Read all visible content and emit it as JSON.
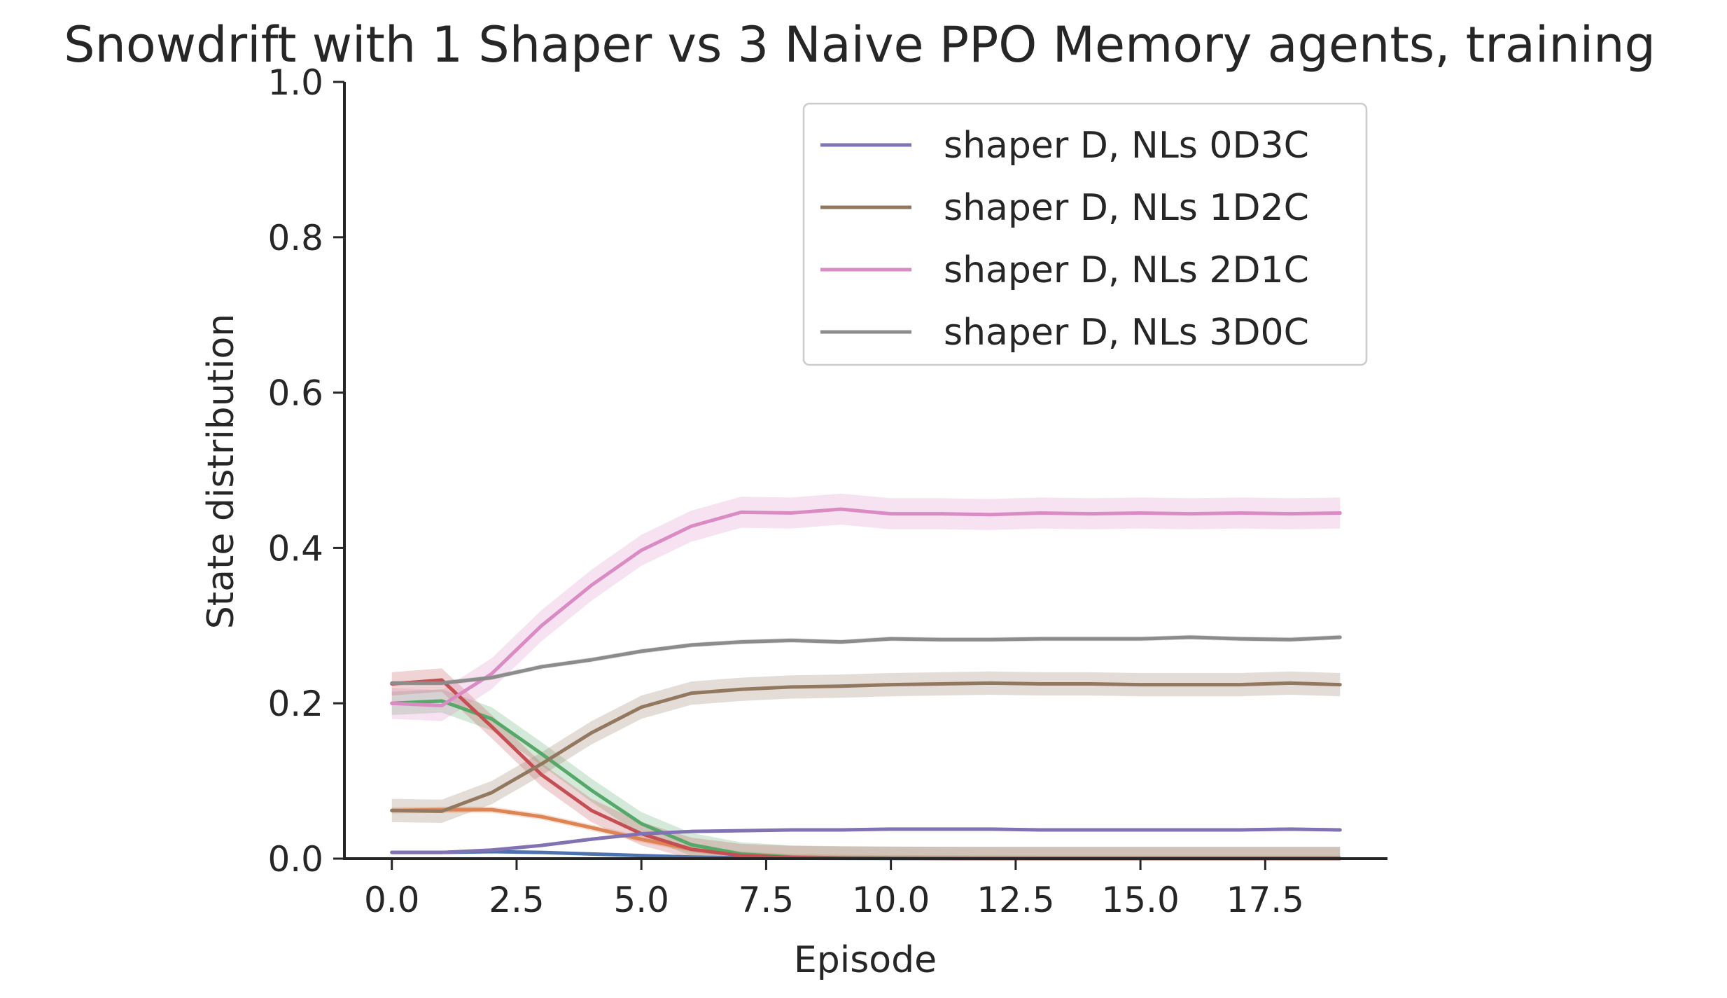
{
  "chart_data": {
    "type": "line",
    "title": "Snowdrift with 1 Shaper vs 3 Naive PPO Memory agents, training",
    "xlabel": "Episode",
    "ylabel": "State distribution",
    "xlim": [
      -0.95,
      19.95
    ],
    "ylim": [
      0,
      1
    ],
    "xticks": [
      {
        "value": 0,
        "label": "0.0"
      },
      {
        "value": 2.5,
        "label": "2.5"
      },
      {
        "value": 5,
        "label": "5.0"
      },
      {
        "value": 7.5,
        "label": "7.5"
      },
      {
        "value": 10,
        "label": "10.0"
      },
      {
        "value": 12.5,
        "label": "12.5"
      },
      {
        "value": 15,
        "label": "15.0"
      },
      {
        "value": 17.5,
        "label": "17.5"
      }
    ],
    "yticks": [
      {
        "value": 0,
        "label": "0.0"
      },
      {
        "value": 0.2,
        "label": "0.2"
      },
      {
        "value": 0.4,
        "label": "0.4"
      },
      {
        "value": 0.6,
        "label": "0.6"
      },
      {
        "value": 0.8,
        "label": "0.8"
      },
      {
        "value": 1.0,
        "label": "1.0"
      }
    ],
    "grid": false,
    "legend_position": "top-right",
    "x": [
      0,
      1,
      2,
      3,
      4,
      5,
      6,
      7,
      8,
      9,
      10,
      11,
      12,
      13,
      14,
      15,
      16,
      17,
      18,
      19
    ],
    "series": [
      {
        "name": "",
        "color": "#4c72b0",
        "band": 0.001,
        "values": [
          0.008,
          0.008,
          0.009,
          0.008,
          0.006,
          0.004,
          0.002,
          0.001,
          0.0005,
          0.0003,
          0.0002,
          0.0002,
          0.0001,
          0.0001,
          0.0001,
          0.0001,
          0.0001,
          0.0001,
          0.0001,
          0.0001
        ]
      },
      {
        "name": "",
        "color": "#dd8452",
        "band": 0.004,
        "values": [
          0.062,
          0.063,
          0.063,
          0.054,
          0.04,
          0.025,
          0.012,
          0.005,
          0.002,
          0.001,
          0.0005,
          0.0003,
          0.0002,
          0.0001,
          0.0001,
          0.0001,
          0.0001,
          0.0001,
          0.0001,
          0.0001
        ]
      },
      {
        "name": "",
        "color": "#55a868",
        "band": 0.015,
        "values": [
          0.2,
          0.203,
          0.18,
          0.135,
          0.088,
          0.045,
          0.018,
          0.006,
          0.002,
          0.001,
          0.0005,
          0.0003,
          0.0002,
          0.0001,
          0.0001,
          0.0001,
          0.0001,
          0.0001,
          0.0001,
          0.0001
        ]
      },
      {
        "name": "",
        "color": "#c44e52",
        "band": 0.015,
        "values": [
          0.225,
          0.23,
          0.17,
          0.108,
          0.062,
          0.032,
          0.012,
          0.004,
          0.0015,
          0.0008,
          0.0004,
          0.0002,
          0.0001,
          0.0001,
          0.0001,
          0.0001,
          0.0001,
          0.0001,
          0.0001,
          0.0001
        ]
      },
      {
        "name": "shaper D, NLs 0D3C",
        "color": "#8172b3",
        "band": 0.002,
        "values": [
          0.008,
          0.008,
          0.011,
          0.017,
          0.025,
          0.032,
          0.035,
          0.036,
          0.037,
          0.037,
          0.038,
          0.038,
          0.038,
          0.037,
          0.037,
          0.037,
          0.037,
          0.037,
          0.038,
          0.037
        ]
      },
      {
        "name": "shaper D, NLs 1D2C",
        "color": "#937860",
        "band": 0.015,
        "values": [
          0.062,
          0.061,
          0.085,
          0.122,
          0.162,
          0.195,
          0.213,
          0.218,
          0.221,
          0.222,
          0.224,
          0.225,
          0.226,
          0.225,
          0.225,
          0.224,
          0.224,
          0.224,
          0.226,
          0.224
        ]
      },
      {
        "name": "shaper D, NLs 2D1C",
        "color": "#da8bc3",
        "band": 0.02,
        "values": [
          0.2,
          0.197,
          0.238,
          0.3,
          0.352,
          0.397,
          0.428,
          0.446,
          0.445,
          0.45,
          0.444,
          0.444,
          0.443,
          0.445,
          0.444,
          0.445,
          0.444,
          0.445,
          0.444,
          0.445
        ]
      },
      {
        "name": "shaper D, NLs 3D0C",
        "color": "#8c8c8c",
        "band": 0.003,
        "values": [
          0.226,
          0.226,
          0.233,
          0.247,
          0.256,
          0.267,
          0.275,
          0.279,
          0.281,
          0.279,
          0.283,
          0.282,
          0.282,
          0.283,
          0.283,
          0.283,
          0.285,
          0.283,
          0.282,
          0.285
        ]
      }
    ]
  }
}
